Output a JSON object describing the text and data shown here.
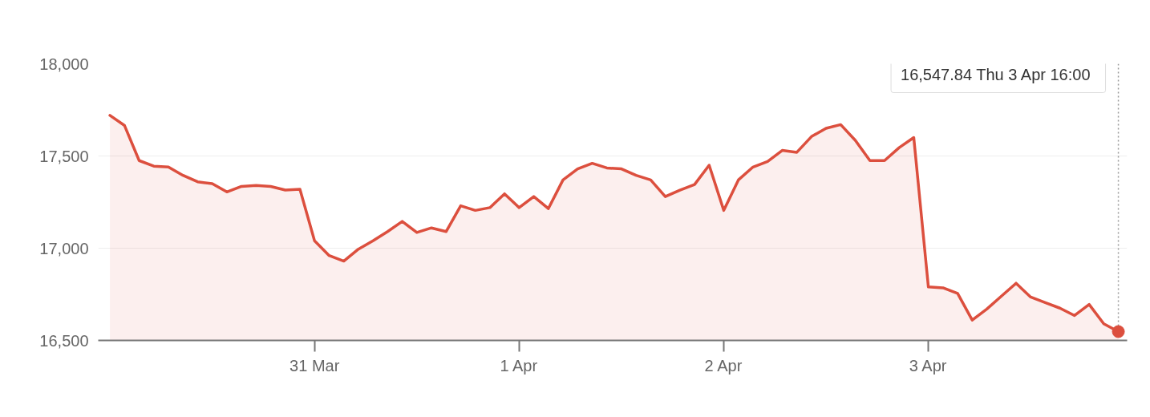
{
  "chart_data": {
    "type": "area",
    "categories": [
      null,
      null,
      null,
      null,
      null,
      null,
      null,
      null,
      null,
      null,
      null,
      null,
      null,
      null,
      "31 Mar",
      null,
      null,
      null,
      null,
      null,
      null,
      null,
      null,
      null,
      null,
      null,
      null,
      null,
      "1 Apr",
      null,
      null,
      null,
      null,
      null,
      null,
      null,
      null,
      null,
      null,
      null,
      null,
      null,
      "2 Apr",
      null,
      null,
      null,
      null,
      null,
      null,
      null,
      null,
      null,
      null,
      null,
      null,
      null,
      "3 Apr",
      null,
      null,
      null,
      null,
      null,
      null,
      null,
      null,
      null,
      null,
      null,
      null,
      null
    ],
    "values": [
      17720,
      17665,
      17475,
      17445,
      17440,
      17395,
      17360,
      17350,
      17305,
      17335,
      17340,
      17335,
      17315,
      17320,
      17040,
      16960,
      16930,
      16995,
      17040,
      17090,
      17145,
      17085,
      17110,
      17090,
      17230,
      17205,
      17220,
      17295,
      17220,
      17280,
      17215,
      17370,
      17430,
      17460,
      17435,
      17430,
      17395,
      17370,
      17280,
      17315,
      17345,
      17450,
      17205,
      17370,
      17440,
      17470,
      17530,
      17520,
      17605,
      17650,
      17670,
      17585,
      17475,
      17475,
      17545,
      17600,
      16790,
      16785,
      16755,
      16610,
      16670,
      16740,
      16810,
      16735,
      16705,
      16675,
      16635,
      16695,
      16590,
      16547.84
    ],
    "color": "#dc4f3e",
    "ylim": [
      16500,
      18000
    ],
    "yticks": [
      {
        "value": 16500,
        "label": "16,500"
      },
      {
        "value": 17000,
        "label": "17,000"
      },
      {
        "value": 17500,
        "label": "17,500"
      },
      {
        "value": 18000,
        "label": "18,000"
      }
    ],
    "grid": "y",
    "annotations": [
      "16,547.84  Thu 3 Apr 16:00"
    ]
  }
}
